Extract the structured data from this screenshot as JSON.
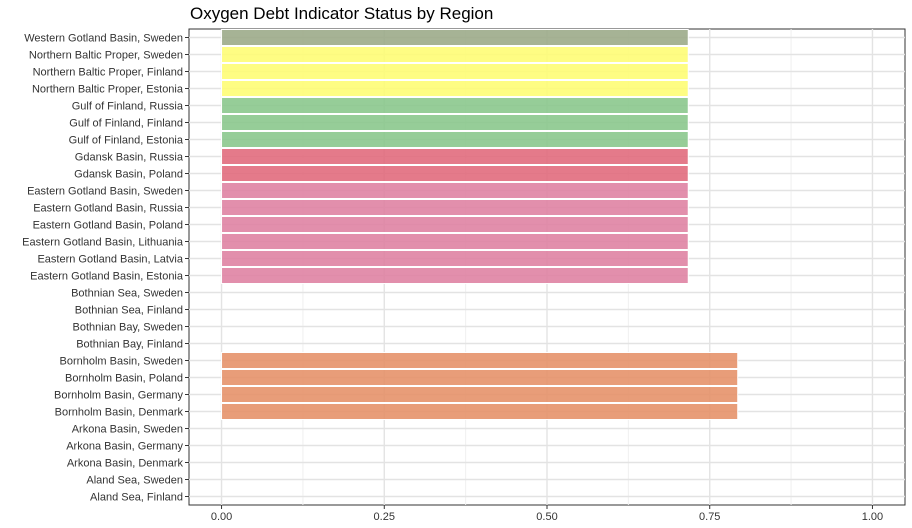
{
  "chart_data": {
    "type": "bar",
    "orientation": "horizontal",
    "title": "Oxygen Debt Indicator Status by Region",
    "xlabel": "",
    "ylabel": "",
    "xlim": [
      0,
      1
    ],
    "x_ticks": [
      "0.00",
      "0.25",
      "0.50",
      "0.75",
      "1.00"
    ],
    "grid": true,
    "categories": [
      "Western Gotland Basin, Sweden",
      "Northern Baltic Proper, Sweden",
      "Northern Baltic Proper, Finland",
      "Northern Baltic Proper, Estonia",
      "Gulf of Finland, Russia",
      "Gulf of Finland, Finland",
      "Gulf of Finland, Estonia",
      "Gdansk Basin, Russia",
      "Gdansk Basin, Poland",
      "Eastern Gotland Basin, Sweden",
      "Eastern Gotland Basin, Russia",
      "Eastern Gotland Basin, Poland",
      "Eastern Gotland Basin, Lithuania",
      "Eastern Gotland Basin, Latvia",
      "Eastern Gotland Basin, Estonia",
      "Bothnian Sea, Sweden",
      "Bothnian Sea, Finland",
      "Bothnian Bay, Sweden",
      "Bothnian Bay, Finland",
      "Bornholm Basin, Sweden",
      "Bornholm Basin, Poland",
      "Bornholm Basin, Germany",
      "Bornholm Basin, Denmark",
      "Arkona Basin, Sweden",
      "Arkona Basin, Germany",
      "Arkona Basin, Denmark",
      "Aland Sea, Sweden",
      "Aland Sea, Finland"
    ],
    "values": [
      0.717,
      0.717,
      0.717,
      0.717,
      0.717,
      0.717,
      0.717,
      0.717,
      0.717,
      0.717,
      0.717,
      0.717,
      0.717,
      0.717,
      0.717,
      null,
      null,
      null,
      null,
      0.793,
      0.793,
      0.793,
      0.793,
      null,
      null,
      null,
      null,
      null
    ],
    "colors": [
      "#9aa886",
      "#fefd72",
      "#fefd72",
      "#fefd72",
      "#87c68a",
      "#87c68a",
      "#87c68a",
      "#e0687a",
      "#e0687a",
      "#de7fa0",
      "#de7fa0",
      "#de7fa0",
      "#de7fa0",
      "#de7fa0",
      "#de7fa0",
      null,
      null,
      null,
      null,
      "#e58f66",
      "#e58f66",
      "#e58f66",
      "#e58f66",
      null,
      null,
      null,
      null,
      null
    ]
  }
}
